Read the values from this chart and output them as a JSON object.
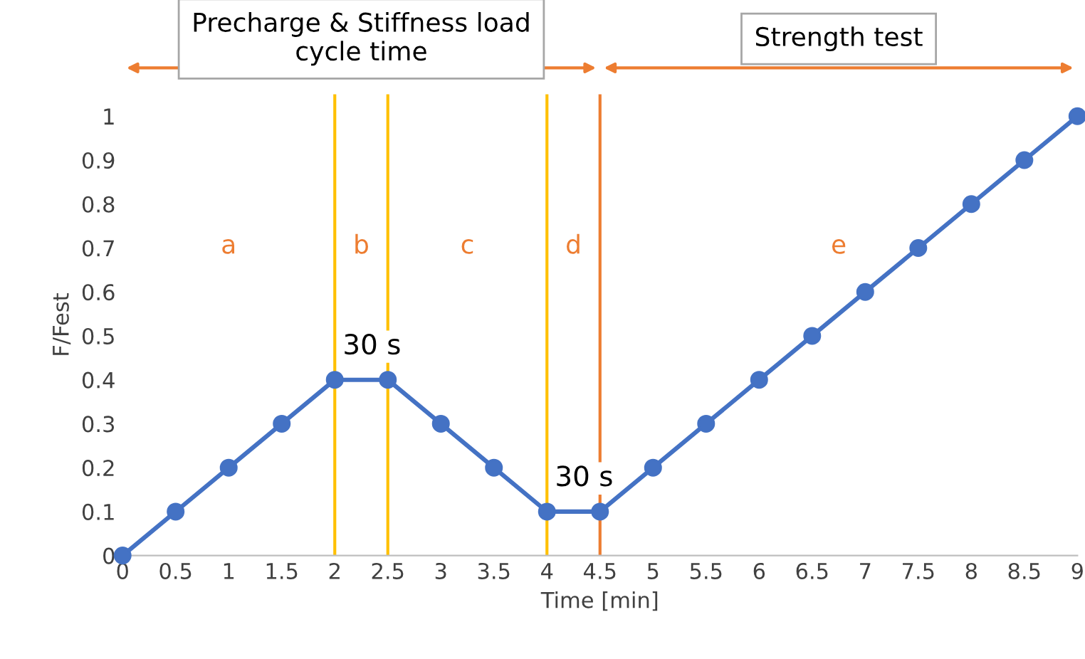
{
  "chart_data": {
    "type": "line",
    "xlabel": "Time [min]",
    "ylabel": "F/Fest",
    "x": [
      0,
      0.5,
      1,
      1.5,
      2,
      2.5,
      3,
      3.5,
      4,
      4.5,
      5,
      5.5,
      6,
      6.5,
      7,
      7.5,
      8,
      8.5,
      9
    ],
    "series": [
      {
        "color": "#4472c4",
        "values": [
          0,
          0.1,
          0.2,
          0.3,
          0.4,
          0.4,
          0.3,
          0.2,
          0.1,
          0.1,
          0.2,
          0.3,
          0.4,
          0.5,
          0.6,
          0.7,
          0.8,
          0.9,
          1.0
        ]
      }
    ],
    "marker": "circle",
    "line_style": "solid",
    "grid": false,
    "legend": false,
    "xlim": [
      0,
      9
    ],
    "ylim": [
      0,
      1.05
    ],
    "xticks": [
      0,
      0.5,
      1,
      1.5,
      2,
      2.5,
      3,
      3.5,
      4,
      4.5,
      5,
      5.5,
      6,
      6.5,
      7,
      7.5,
      8,
      8.5,
      9
    ],
    "yticks": [
      0,
      0.1,
      0.2,
      0.3,
      0.4,
      0.5,
      0.6,
      0.7,
      0.8,
      0.9,
      1
    ],
    "ref_lines": [
      {
        "axis": "x",
        "value": 2,
        "label": null,
        "color": "#ffc000"
      },
      {
        "axis": "x",
        "value": 2.5,
        "label": null,
        "color": "#ffc000"
      },
      {
        "axis": "x",
        "value": 4,
        "label": null,
        "color": "#ffc000"
      },
      {
        "axis": "x",
        "value": 4.5,
        "label": null,
        "color": "#ed7d31"
      }
    ],
    "annotations": [
      "a",
      "b",
      "c",
      "d",
      "e",
      "30 s",
      "30 s",
      "Precharge & Stiffness load\ncycle time",
      "Strength test"
    ]
  }
}
